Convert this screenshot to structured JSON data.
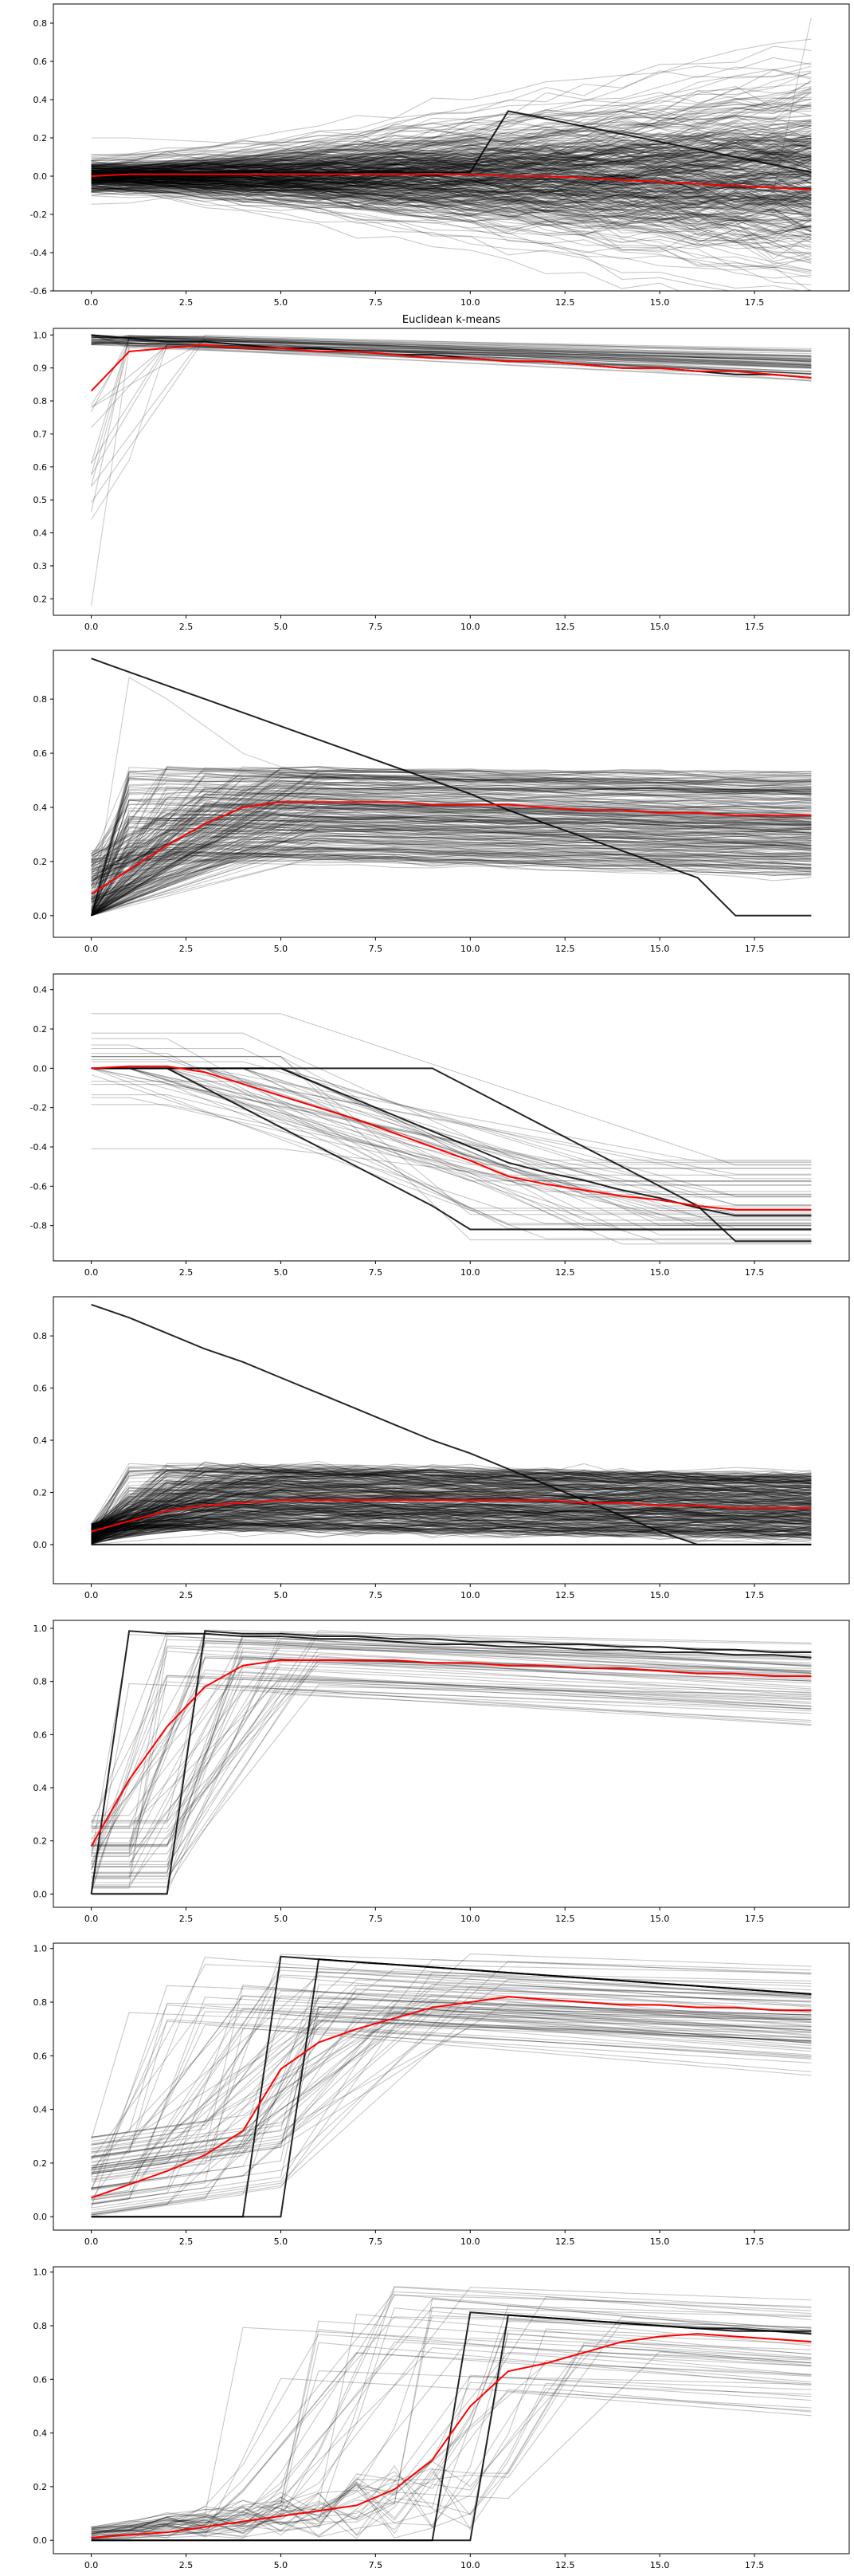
{
  "figure_title": "Euclidean k-means",
  "chart_data": [
    {
      "type": "line",
      "title": "",
      "xlim": [
        -1,
        20
      ],
      "ylim": [
        -0.6,
        0.9
      ],
      "x_ticks": [
        0.0,
        2.5,
        5.0,
        7.5,
        10.0,
        12.5,
        15.0,
        17.5
      ],
      "y_ticks": [
        -0.6,
        -0.4,
        -0.2,
        0.0,
        0.2,
        0.4,
        0.6,
        0.8
      ],
      "series_count_approx": 400,
      "series": [
        {
          "name": "",
          "color": "#000000",
          "alpha": 0.2,
          "values": [
            0.0,
            0.01,
            0.02,
            0.02,
            0.02,
            0.02,
            0.02,
            0.02,
            0.02,
            0.02,
            0.02,
            0.34,
            0.31,
            0.28,
            0.25,
            0.21,
            0.18,
            0.15,
            0.12,
            0.09
          ]
        },
        {
          "name": "",
          "color": "#000000",
          "alpha": 0.2,
          "values": [
            0.2,
            0.2,
            0.19,
            0.18,
            0.17,
            0.16,
            0.15,
            0.14,
            0.12,
            0.1,
            0.08,
            0.06,
            0.04,
            0.02,
            0.0,
            -0.02,
            -0.04,
            -0.06,
            -0.08,
            0.83
          ]
        },
        {
          "name": "",
          "color": "#000000",
          "alpha": 0.2,
          "values": [
            0.0,
            0.0,
            0.0,
            0.0,
            0.0,
            -0.02,
            -0.05,
            -0.08,
            -0.11,
            -0.14,
            -0.17,
            -0.21,
            -0.25,
            -0.29,
            -0.33,
            -0.37,
            -0.41,
            -0.45,
            -0.49,
            -0.53
          ]
        }
      ],
      "barycenter": {
        "color": "#ff0000",
        "values": [
          0.0,
          0.01,
          0.01,
          0.01,
          0.01,
          0.01,
          0.01,
          0.01,
          0.01,
          0.01,
          0.01,
          0.0,
          0.0,
          -0.01,
          -0.02,
          -0.03,
          -0.04,
          -0.05,
          -0.06,
          -0.07
        ]
      }
    },
    {
      "type": "line",
      "title": "Euclidean k-means",
      "xlim": [
        -1,
        20
      ],
      "ylim": [
        0.15,
        1.02
      ],
      "x_ticks": [
        0.0,
        2.5,
        5.0,
        7.5,
        10.0,
        12.5,
        15.0,
        17.5
      ],
      "y_ticks": [
        0.2,
        0.3,
        0.4,
        0.5,
        0.6,
        0.7,
        0.8,
        0.9,
        1.0
      ],
      "series_count_approx": 60,
      "series": [
        {
          "name": "",
          "color": "#000000",
          "alpha": 0.2,
          "values": [
            0.18,
            0.96,
            0.98,
            0.98,
            0.97,
            0.97,
            0.96,
            0.96,
            0.95,
            0.95,
            0.94,
            0.93,
            0.93,
            0.92,
            0.91,
            0.91,
            0.9,
            0.89,
            0.89,
            0.88
          ]
        },
        {
          "name": "",
          "color": "#000000",
          "alpha": 0.2,
          "values": [
            0.44,
            0.62,
            0.97,
            0.98,
            0.97,
            0.96,
            0.96,
            0.95,
            0.94,
            0.94,
            0.93,
            0.92,
            0.91,
            0.91,
            0.9,
            0.89,
            0.89,
            0.88,
            0.87,
            0.86
          ]
        },
        {
          "name": "",
          "color": "#000000",
          "alpha": 0.2,
          "values": [
            1.0,
            0.99,
            0.99,
            0.98,
            0.97,
            0.97,
            0.96,
            0.95,
            0.95,
            0.94,
            0.93,
            0.93,
            0.92,
            0.91,
            0.91,
            0.9,
            0.89,
            0.89,
            0.88,
            0.87
          ]
        }
      ],
      "barycenter": {
        "color": "#ff0000",
        "values": [
          0.83,
          0.95,
          0.96,
          0.97,
          0.96,
          0.96,
          0.95,
          0.95,
          0.94,
          0.93,
          0.93,
          0.92,
          0.92,
          0.91,
          0.9,
          0.9,
          0.89,
          0.89,
          0.88,
          0.87
        ]
      }
    },
    {
      "type": "line",
      "title": "",
      "xlim": [
        -1,
        20
      ],
      "ylim": [
        -0.08,
        0.98
      ],
      "x_ticks": [
        0.0,
        2.5,
        5.0,
        7.5,
        10.0,
        12.5,
        15.0,
        17.5
      ],
      "y_ticks": [
        0.0,
        0.2,
        0.4,
        0.6,
        0.8
      ],
      "series_count_approx": 250,
      "series": [
        {
          "name": "",
          "color": "#000000",
          "alpha": 0.2,
          "values": [
            0.95,
            0.9,
            0.85,
            0.8,
            0.75,
            0.7,
            0.65,
            0.6,
            0.55,
            0.5,
            0.45,
            0.39,
            0.34,
            0.29,
            0.24,
            0.19,
            0.14,
            0.0,
            0.0,
            0.0
          ]
        },
        {
          "name": "",
          "color": "#000000",
          "alpha": 0.2,
          "values": [
            0.0,
            0.88,
            0.8,
            0.7,
            0.6,
            0.55,
            0.52,
            0.5,
            0.49,
            0.48,
            0.47,
            0.46,
            0.46,
            0.45,
            0.45,
            0.44,
            0.44,
            0.43,
            0.43,
            0.43
          ]
        }
      ],
      "barycenter": {
        "color": "#ff0000",
        "values": [
          0.08,
          0.17,
          0.26,
          0.34,
          0.4,
          0.42,
          0.42,
          0.42,
          0.42,
          0.41,
          0.41,
          0.41,
          0.4,
          0.39,
          0.39,
          0.38,
          0.38,
          0.37,
          0.37,
          0.37
        ]
      }
    },
    {
      "type": "line",
      "title": "",
      "xlim": [
        -1,
        20
      ],
      "ylim": [
        -0.98,
        0.48
      ],
      "x_ticks": [
        0.0,
        2.5,
        5.0,
        7.5,
        10.0,
        12.5,
        15.0,
        17.5
      ],
      "y_ticks": [
        -0.8,
        -0.6,
        -0.4,
        -0.2,
        0.0,
        0.2,
        0.4
      ],
      "series_count_approx": 50,
      "series": [],
      "barycenter": {
        "color": "#ff0000",
        "values": [
          0.0,
          0.01,
          0.01,
          -0.02,
          -0.08,
          -0.14,
          -0.2,
          -0.26,
          -0.33,
          -0.4,
          -0.47,
          -0.55,
          -0.59,
          -0.62,
          -0.65,
          -0.67,
          -0.7,
          -0.72,
          -0.72,
          -0.72
        ]
      }
    },
    {
      "type": "line",
      "title": "",
      "xlim": [
        -1,
        20
      ],
      "ylim": [
        -0.15,
        0.95
      ],
      "x_ticks": [
        0.0,
        2.5,
        5.0,
        7.5,
        10.0,
        12.5,
        15.0,
        17.5
      ],
      "y_ticks": [
        0.0,
        0.2,
        0.4,
        0.6,
        0.8
      ],
      "series_count_approx": 350,
      "series": [],
      "barycenter": {
        "color": "#ff0000",
        "values": [
          0.05,
          0.09,
          0.13,
          0.15,
          0.16,
          0.17,
          0.17,
          0.17,
          0.17,
          0.17,
          0.17,
          0.17,
          0.17,
          0.16,
          0.16,
          0.15,
          0.15,
          0.14,
          0.14,
          0.14
        ]
      }
    },
    {
      "type": "line",
      "title": "",
      "xlim": [
        -1,
        20
      ],
      "ylim": [
        -0.05,
        1.03
      ],
      "x_ticks": [
        0.0,
        2.5,
        5.0,
        7.5,
        10.0,
        12.5,
        15.0,
        17.5
      ],
      "y_ticks": [
        0.0,
        0.2,
        0.4,
        0.6,
        0.8,
        1.0
      ],
      "series_count_approx": 60,
      "series": [],
      "barycenter": {
        "color": "#ff0000",
        "values": [
          0.18,
          0.43,
          0.63,
          0.78,
          0.86,
          0.88,
          0.88,
          0.88,
          0.88,
          0.87,
          0.87,
          0.86,
          0.86,
          0.85,
          0.85,
          0.84,
          0.83,
          0.83,
          0.82,
          0.82
        ]
      }
    },
    {
      "type": "line",
      "title": "",
      "xlim": [
        -1,
        20
      ],
      "ylim": [
        -0.05,
        1.02
      ],
      "x_ticks": [
        0.0,
        2.5,
        5.0,
        7.5,
        10.0,
        12.5,
        15.0,
        17.5
      ],
      "y_ticks": [
        0.0,
        0.2,
        0.4,
        0.6,
        0.8,
        1.0
      ],
      "series_count_approx": 80,
      "series": [],
      "barycenter": {
        "color": "#ff0000",
        "values": [
          0.07,
          0.12,
          0.17,
          0.23,
          0.32,
          0.55,
          0.65,
          0.7,
          0.74,
          0.78,
          0.8,
          0.82,
          0.81,
          0.8,
          0.79,
          0.79,
          0.78,
          0.78,
          0.77,
          0.77
        ]
      }
    },
    {
      "type": "line",
      "title": "",
      "xlim": [
        -1,
        20
      ],
      "ylim": [
        -0.05,
        1.02
      ],
      "x_ticks": [
        0.0,
        2.5,
        5.0,
        7.5,
        10.0,
        12.5,
        15.0,
        17.5
      ],
      "y_ticks": [
        0.0,
        0.2,
        0.4,
        0.6,
        0.8,
        1.0
      ],
      "series_count_approx": 50,
      "series": [],
      "barycenter": {
        "color": "#ff0000",
        "values": [
          0.01,
          0.02,
          0.03,
          0.05,
          0.07,
          0.09,
          0.11,
          0.13,
          0.19,
          0.3,
          0.5,
          0.63,
          0.66,
          0.7,
          0.74,
          0.76,
          0.77,
          0.76,
          0.75,
          0.74
        ]
      }
    }
  ]
}
